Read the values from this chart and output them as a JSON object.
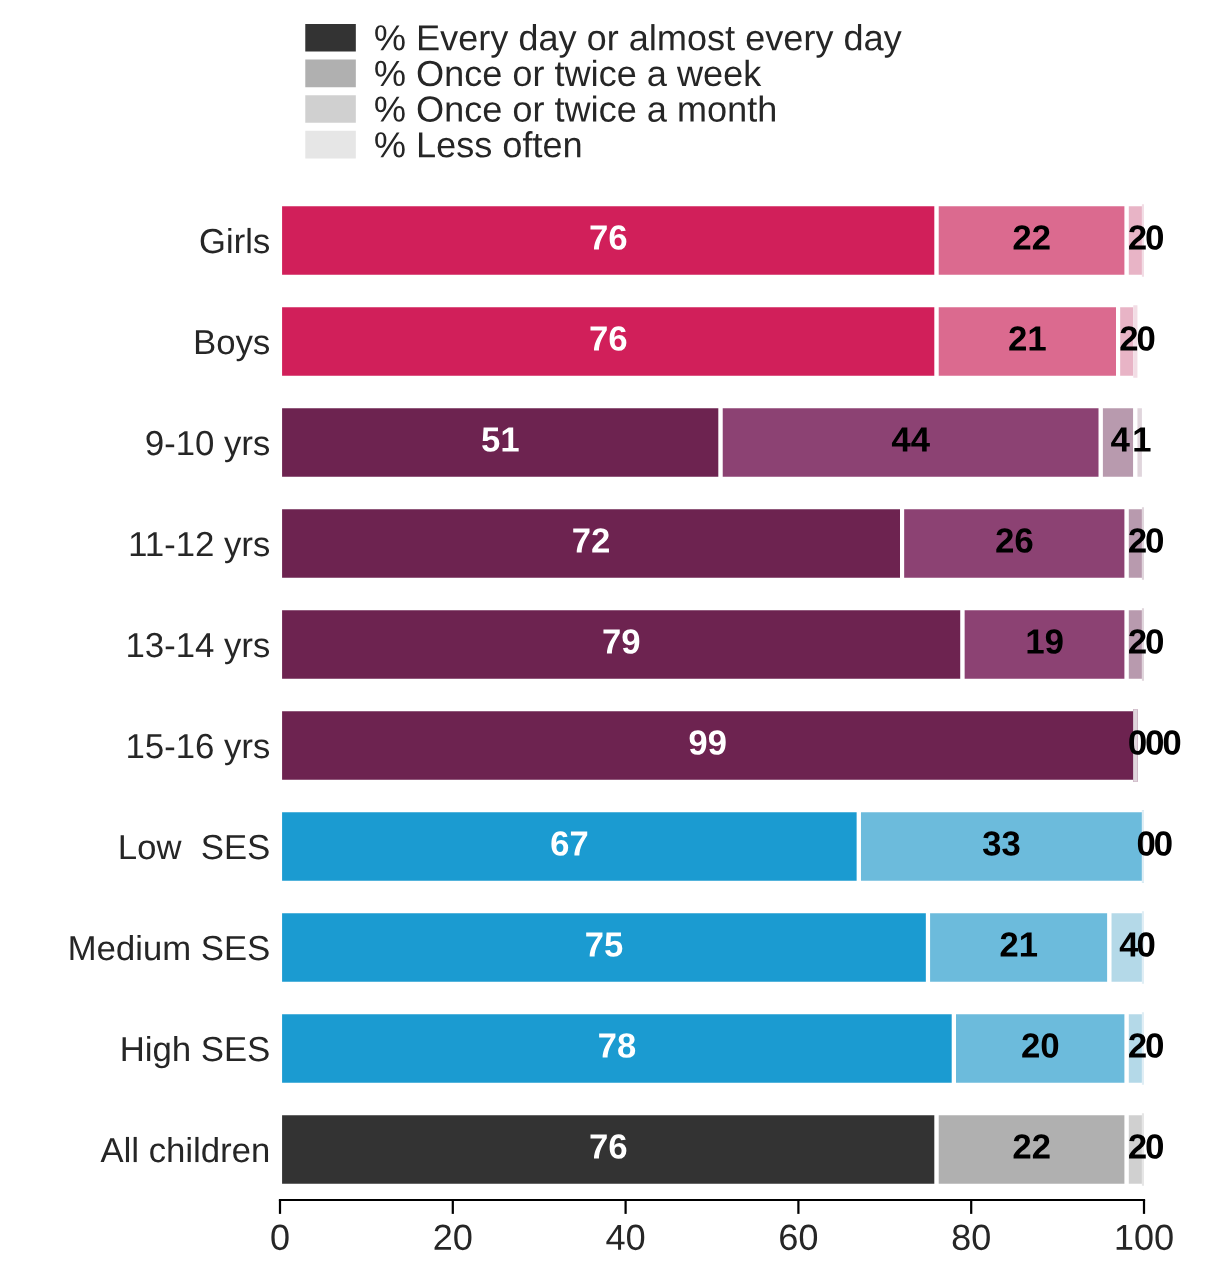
{
  "chart_data": {
    "type": "bar",
    "orientation": "horizontal",
    "stacked": true,
    "data_labels": true,
    "legend": "top",
    "grid": false,
    "categories": [
      "Girls",
      "Boys",
      "9-10 yrs",
      "11-12 yrs",
      "13-14 yrs",
      "15-16 yrs",
      "Low  SES",
      "Medium SES",
      "High SES",
      "All children"
    ],
    "xlim": [
      0,
      100
    ],
    "xticks": [
      0,
      20,
      40,
      60,
      80,
      100
    ],
    "series": [
      {
        "name": "% Every day or almost every day",
        "color": "#333333",
        "values": [
          76,
          76,
          51,
          72,
          79,
          99,
          67,
          75,
          78,
          76
        ],
        "colors": [
          "#d11f5a",
          "#d11f5a",
          "#6d2350",
          "#6d2350",
          "#6d2350",
          "#6d2350",
          "#1b9bd1",
          "#1b9bd1",
          "#1b9bd1",
          "#333333"
        ]
      },
      {
        "name": "% Once or twice a week",
        "color": "#b0b0b0",
        "values": [
          22,
          21,
          44,
          26,
          19,
          0,
          33,
          21,
          20,
          22
        ],
        "colors": [
          "#db6a8f",
          "#db6a8f",
          "#8c4273",
          "#8c4273",
          "#8c4273",
          "#8c4273",
          "#6cbbdc",
          "#6cbbdc",
          "#6cbbdc",
          "#b0b0b0"
        ]
      },
      {
        "name": "% Once or twice a month",
        "color": "#d0d0d0",
        "values": [
          2,
          2,
          4,
          2,
          2,
          0,
          0,
          4,
          2,
          2
        ],
        "colors": [
          "#e8b4c6",
          "#e8b4c6",
          "#b89aae",
          "#b89aae",
          "#b89aae",
          "#b89aae",
          "#b4d9e8",
          "#b4d9e8",
          "#b4d9e8",
          "#d0d0d0"
        ]
      },
      {
        "name": "% Less often",
        "color": "#e6e6e6",
        "values": [
          0,
          0,
          1,
          0,
          0,
          0,
          0,
          0,
          0,
          0
        ],
        "colors": [
          "#f2dde5",
          "#f2dde5",
          "#e0d5dc",
          "#e0d5dc",
          "#e0d5dc",
          "#e0d5dc",
          "#e0eef5",
          "#e0eef5",
          "#e0eef5",
          "#e6e6e6"
        ]
      }
    ]
  }
}
